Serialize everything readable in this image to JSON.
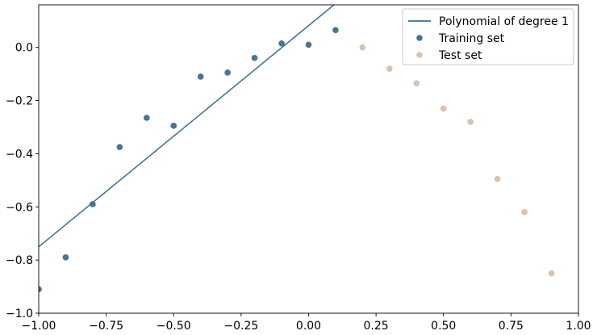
{
  "chart_data": {
    "type": "scatter",
    "xlim": [
      -1.0,
      1.0
    ],
    "ylim": [
      -1.0,
      0.16
    ],
    "x_ticks": [
      -1.0,
      -0.75,
      -0.5,
      -0.25,
      0.0,
      0.25,
      0.5,
      0.75,
      1.0
    ],
    "x_tick_labels": [
      "−1.00",
      "−0.75",
      "−0.50",
      "−0.25",
      "0.00",
      "0.25",
      "0.50",
      "0.75",
      "1.00"
    ],
    "y_ticks": [
      -1.0,
      -0.8,
      -0.6,
      -0.4,
      -0.2,
      0.0
    ],
    "y_tick_labels": [
      "−1.0",
      "−0.8",
      "−0.6",
      "−0.4",
      "−0.2",
      "0.0"
    ],
    "grid": false,
    "legend_position": "top-right",
    "series": [
      {
        "name": "Polynomial of degree 1",
        "kind": "line",
        "color": "#3b6e8f",
        "x": [
          -1.0,
          0.1
        ],
        "y": [
          -0.75,
          0.165
        ]
      },
      {
        "name": "Training set",
        "kind": "scatter",
        "color": "#4a7390",
        "x": [
          -1.0,
          -0.9,
          -0.8,
          -0.7,
          -0.6,
          -0.5,
          -0.4,
          -0.3,
          -0.2,
          -0.1,
          0.0,
          0.1
        ],
        "y": [
          -0.91,
          -0.79,
          -0.59,
          -0.375,
          -0.265,
          -0.295,
          -0.11,
          -0.095,
          -0.04,
          0.015,
          0.01,
          0.065
        ]
      },
      {
        "name": "Test set",
        "kind": "scatter",
        "color": "#d8c2b0",
        "x": [
          0.2,
          0.3,
          0.4,
          0.5,
          0.6,
          0.7,
          0.8,
          0.9
        ],
        "y": [
          0.0,
          -0.08,
          -0.135,
          -0.23,
          -0.28,
          -0.495,
          -0.62,
          -0.85
        ]
      }
    ]
  }
}
